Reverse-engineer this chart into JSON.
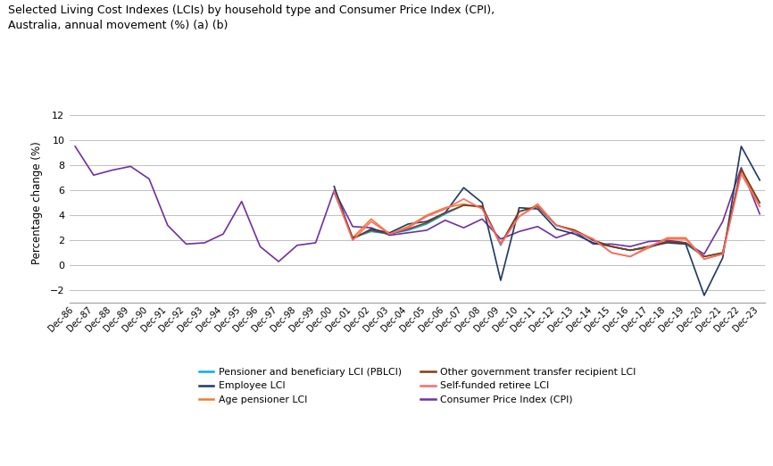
{
  "title": "Selected Living Cost Indexes (LCIs) by household type and Consumer Price Index (CPI),\nAustralia, annual movement (%) (a) (b)",
  "ylabel": "Percentage change (%)",
  "ylim": [
    -3,
    13
  ],
  "yticks": [
    -2,
    0,
    2,
    4,
    6,
    8,
    10,
    12
  ],
  "legend": [
    {
      "label": "Pensioner and beneficiary LCI (PBLCI)",
      "color": "#00B0F0"
    },
    {
      "label": "Employee LCI",
      "color": "#1F3864"
    },
    {
      "label": "Age pensioner LCI",
      "color": "#ED7D31"
    },
    {
      "label": "Other government transfer recipient LCI",
      "color": "#843C0C"
    },
    {
      "label": "Self-funded retiree LCI",
      "color": "#FF6B6B"
    },
    {
      "label": "Consumer Price Index (CPI)",
      "color": "#7030A0"
    }
  ],
  "cpi_dates": [
    "Dec-86",
    "Dec-87",
    "Dec-88",
    "Dec-89",
    "Dec-90",
    "Dec-91",
    "Dec-92",
    "Dec-93",
    "Dec-94",
    "Dec-95",
    "Dec-96",
    "Dec-97",
    "Dec-98",
    "Dec-99",
    "Dec-00",
    "Dec-01",
    "Dec-02",
    "Dec-03",
    "Dec-04",
    "Dec-05",
    "Dec-06",
    "Dec-07",
    "Dec-08",
    "Dec-09",
    "Dec-10",
    "Dec-11",
    "Dec-12",
    "Dec-13",
    "Dec-14",
    "Dec-15",
    "Dec-16",
    "Dec-17",
    "Dec-18",
    "Dec-19",
    "Dec-20",
    "Dec-21",
    "Dec-22",
    "Dec-23"
  ],
  "cpi_values": [
    9.5,
    7.2,
    7.6,
    7.9,
    6.9,
    3.2,
    1.7,
    1.8,
    2.5,
    5.1,
    1.5,
    0.3,
    1.6,
    1.8,
    6.0,
    3.1,
    3.0,
    2.4,
    2.6,
    2.8,
    3.6,
    3.0,
    3.7,
    2.1,
    2.7,
    3.1,
    2.2,
    2.7,
    1.7,
    1.7,
    1.5,
    1.9,
    2.0,
    1.8,
    0.9,
    3.5,
    7.8,
    4.1
  ],
  "lci_dates": [
    "Dec-00",
    "Dec-01",
    "Dec-02",
    "Dec-03",
    "Dec-04",
    "Dec-05",
    "Dec-06",
    "Dec-07",
    "Dec-08",
    "Dec-09",
    "Dec-10",
    "Dec-11",
    "Dec-12",
    "Dec-13",
    "Dec-14",
    "Dec-15",
    "Dec-16",
    "Dec-17",
    "Dec-18",
    "Dec-19",
    "Dec-20",
    "Dec-21",
    "Dec-22",
    "Dec-23"
  ],
  "pblci_values": [
    5.8,
    2.2,
    2.7,
    2.5,
    2.8,
    3.3,
    4.1,
    4.8,
    4.7,
    1.6,
    4.3,
    4.7,
    3.2,
    2.8,
    2.0,
    1.5,
    1.2,
    1.4,
    1.9,
    1.7,
    0.7,
    1.0,
    7.6,
    5.0
  ],
  "employee_values": [
    6.3,
    2.1,
    2.9,
    2.6,
    3.3,
    3.5,
    4.2,
    6.2,
    5.0,
    -1.2,
    4.6,
    4.5,
    2.9,
    2.5,
    1.8,
    1.5,
    1.2,
    1.5,
    1.8,
    1.7,
    -2.4,
    0.6,
    9.5,
    6.8
  ],
  "age_pensioner_values": [
    5.9,
    2.2,
    3.7,
    2.5,
    3.1,
    4.0,
    4.6,
    4.9,
    4.6,
    1.7,
    3.9,
    4.9,
    3.2,
    2.8,
    2.1,
    1.0,
    0.7,
    1.4,
    2.2,
    2.2,
    0.5,
    0.9,
    7.6,
    4.7
  ],
  "other_govt_values": [
    5.9,
    2.2,
    2.8,
    2.5,
    2.9,
    3.4,
    4.2,
    4.8,
    4.7,
    1.7,
    4.3,
    4.7,
    3.2,
    2.8,
    2.0,
    1.5,
    1.2,
    1.5,
    1.9,
    1.8,
    0.7,
    1.0,
    7.7,
    5.0
  ],
  "self_funded_values": [
    5.9,
    2.0,
    3.5,
    2.5,
    3.0,
    3.9,
    4.5,
    5.3,
    4.5,
    1.7,
    3.9,
    4.8,
    3.2,
    2.7,
    2.1,
    1.0,
    0.7,
    1.5,
    2.1,
    2.1,
    0.5,
    0.9,
    7.3,
    4.7
  ],
  "bg_color": "#FFFFFF",
  "grid_color": "#C0C0C0",
  "line_width": 1.2
}
